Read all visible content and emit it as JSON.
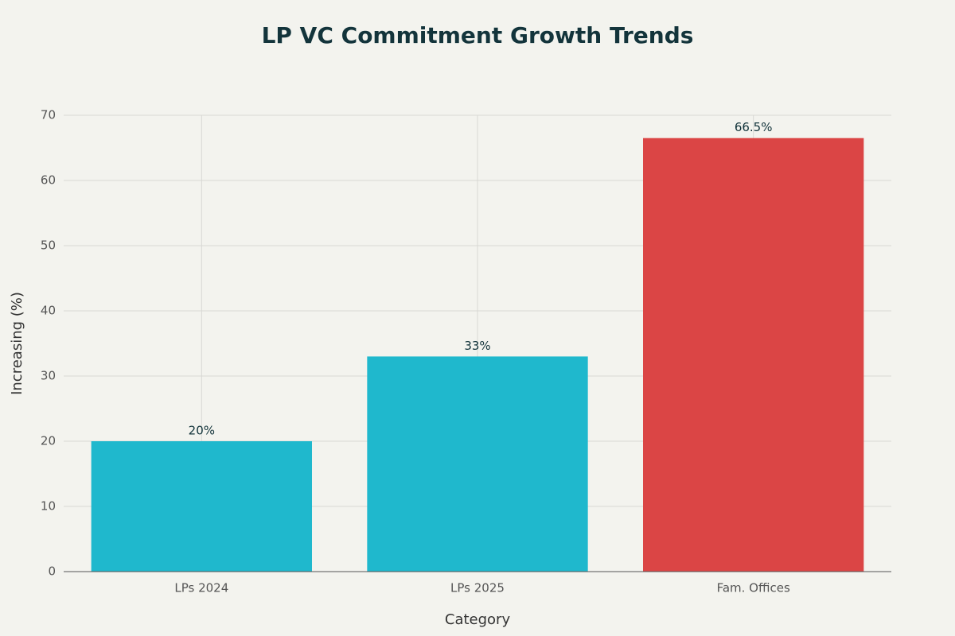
{
  "chart_data": {
    "type": "bar",
    "title": "LP VC Commitment Growth Trends",
    "x_label": "Category",
    "y_label": "Increasing (%)",
    "categories": [
      "LPs 2024",
      "LPs 2025",
      "Fam. Offices"
    ],
    "values": [
      20,
      33,
      66.5
    ],
    "value_labels": [
      "20%",
      "33%",
      "66.5%"
    ],
    "colors": [
      "#1fb8cd",
      "#1fb8cd",
      "#db4545"
    ],
    "ylim": [
      0,
      70
    ],
    "yticks": [
      0,
      10,
      20,
      30,
      40,
      50,
      60,
      70
    ],
    "grid": true
  }
}
